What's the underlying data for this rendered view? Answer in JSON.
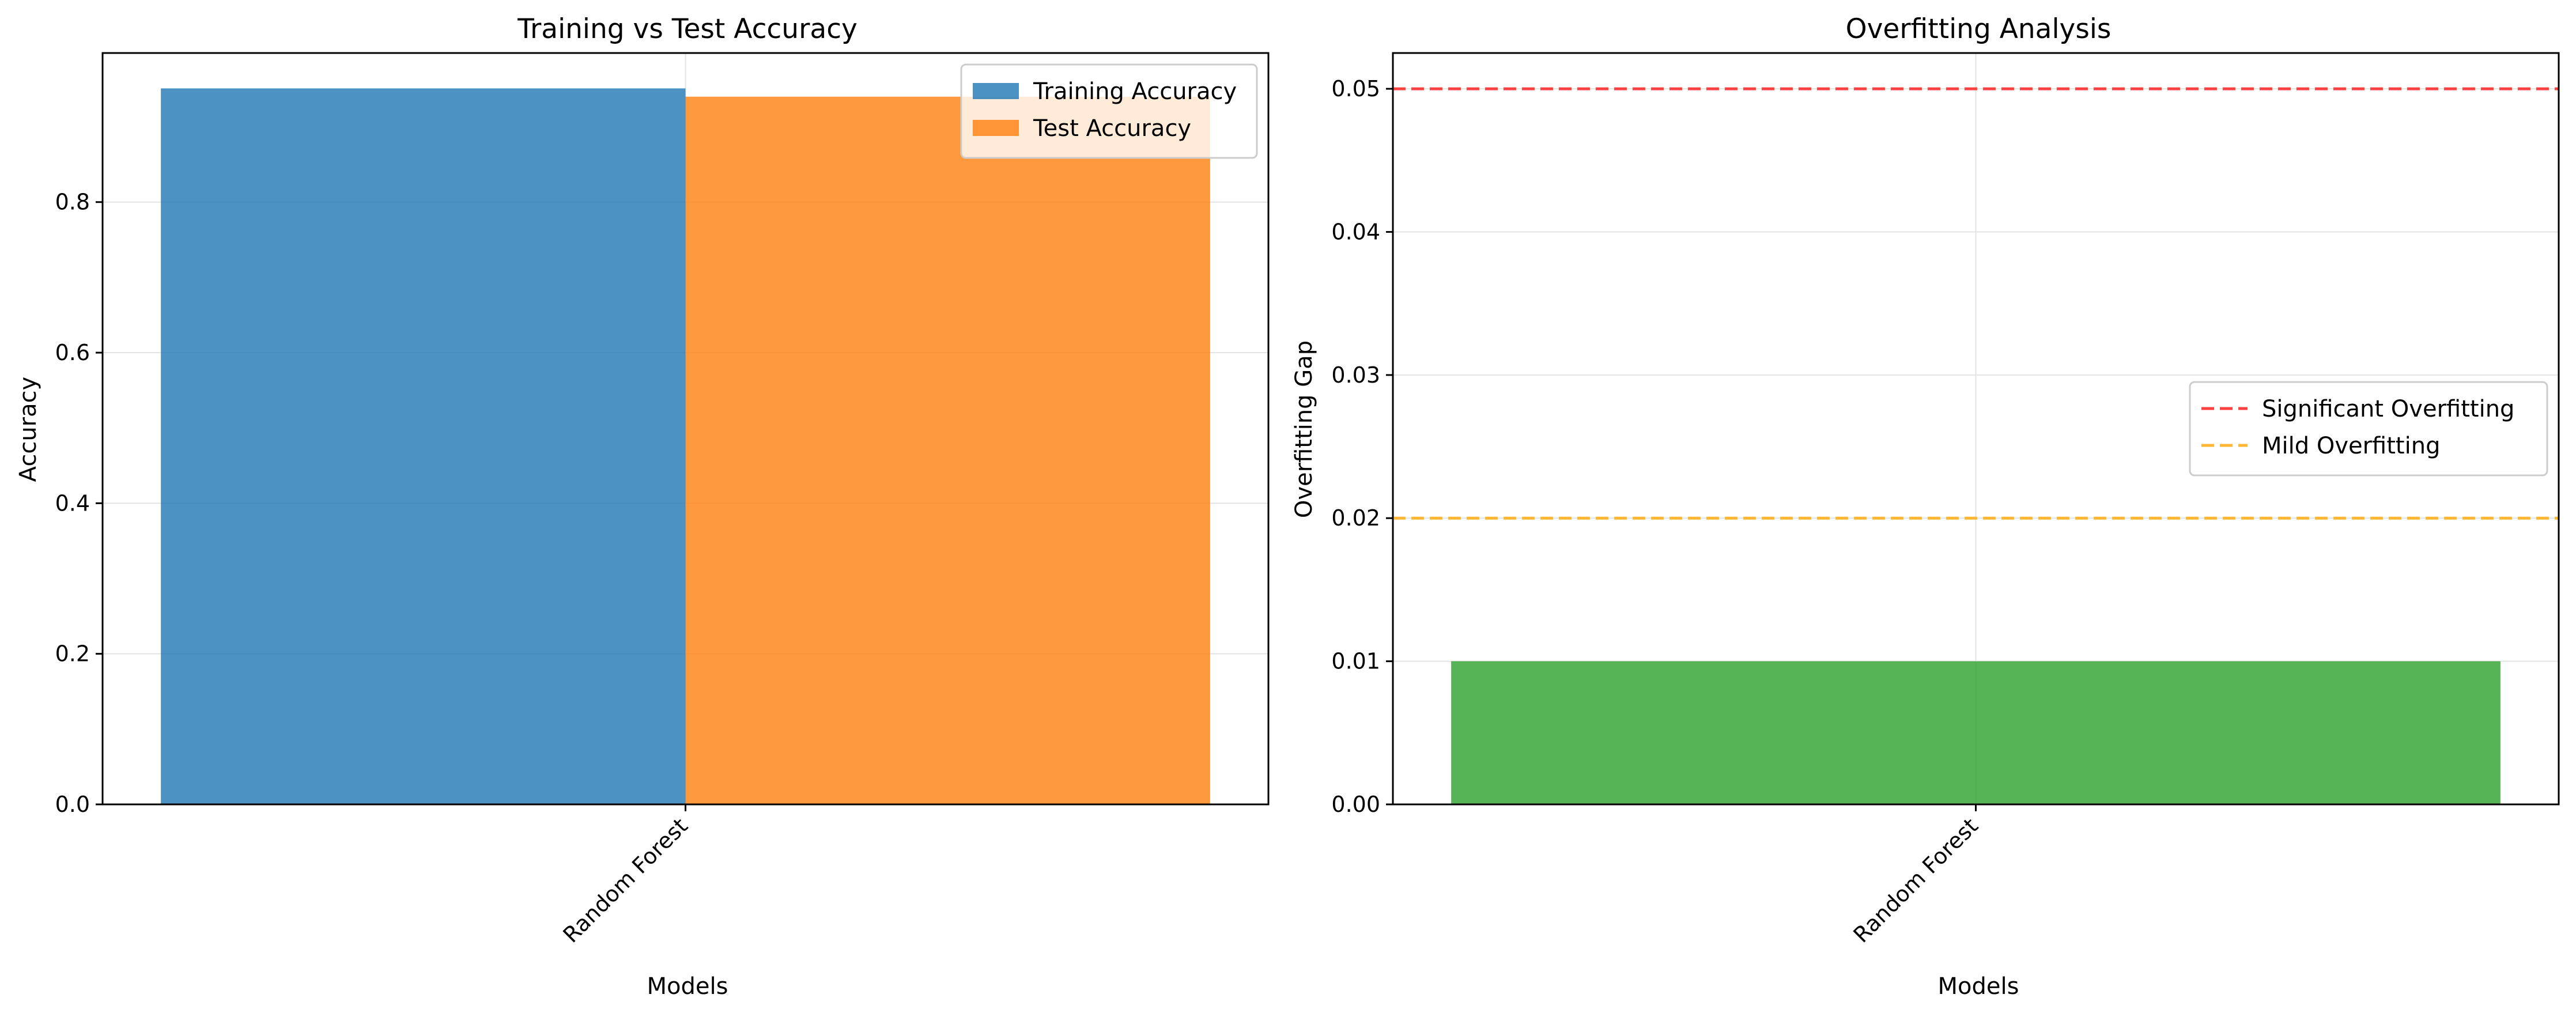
{
  "chart_data": [
    {
      "type": "bar",
      "title": "Training vs Test Accuracy",
      "xlabel": "Models",
      "ylabel": "Accuracy",
      "categories": [
        "Random Forest"
      ],
      "series": [
        {
          "name": "Training Accuracy",
          "values": [
            0.951
          ],
          "color": "#1f77b4"
        },
        {
          "name": "Test Accuracy",
          "values": [
            0.94
          ],
          "color": "#ff7f0e"
        }
      ],
      "ylim": [
        0,
        0.998
      ],
      "yticks": [
        0.0,
        0.2,
        0.4,
        0.6,
        0.8
      ],
      "ytick_labels": [
        "0.0",
        "0.2",
        "0.4",
        "0.6",
        "0.8"
      ],
      "xtick_labels": [
        "Random Forest"
      ],
      "grid": true,
      "legend_position": "top-right"
    },
    {
      "type": "bar",
      "title": "Overfitting Analysis",
      "xlabel": "Models",
      "ylabel": "Overfitting Gap",
      "categories": [
        "Random Forest"
      ],
      "series": [
        {
          "values": [
            0.01
          ],
          "color": "#2ca02c"
        }
      ],
      "reference_lines": [
        {
          "name": "Significant Overfitting",
          "value": 0.05,
          "color": "#ff4040",
          "style": "dashed"
        },
        {
          "name": "Mild Overfitting",
          "value": 0.02,
          "color": "#ffb733",
          "style": "dashed"
        }
      ],
      "ylim": [
        0,
        0.0525
      ],
      "yticks": [
        0.0,
        0.01,
        0.02,
        0.03,
        0.04,
        0.05
      ],
      "ytick_labels": [
        "0.00",
        "0.01",
        "0.02",
        "0.03",
        "0.04",
        "0.05"
      ],
      "xtick_labels": [
        "Random Forest"
      ],
      "grid": true,
      "legend_position": "center-right"
    }
  ]
}
